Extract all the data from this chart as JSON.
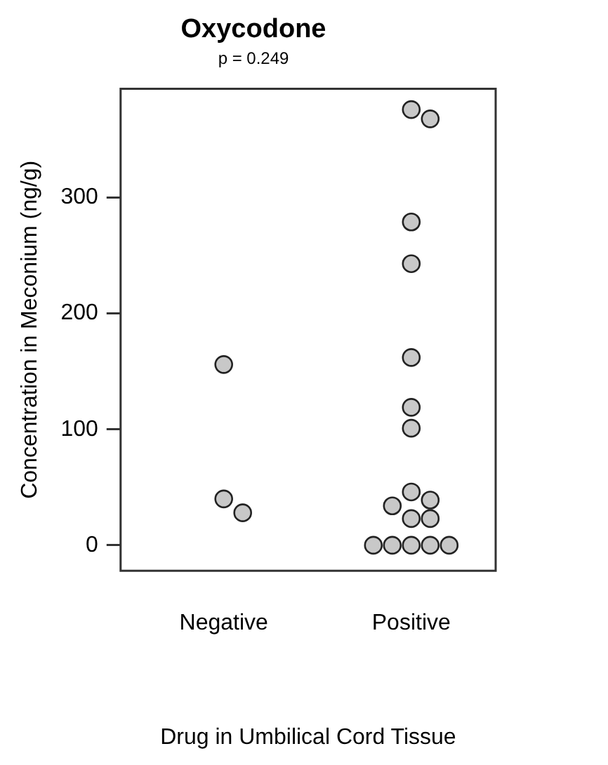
{
  "chart_data": {
    "type": "scatter",
    "title": "Oxycodone",
    "subtitle": "p = 0.249",
    "xlabel": "Drug in Umbilical Cord Tissue",
    "ylabel": "Concentration in Meconium (ng/g)",
    "categories": [
      "Negative",
      "Positive"
    ],
    "series": [
      {
        "color": "#c8c8c8",
        "x": [
          "Negative",
          "Negative",
          "Negative",
          "Positive",
          "Positive",
          "Positive",
          "Positive",
          "Positive",
          "Positive",
          "Positive",
          "Positive",
          "Positive",
          "Positive",
          "Positive",
          "Positive",
          "Positive",
          "Positive",
          "Positive",
          "Positive",
          "Positive"
        ],
        "values": [
          156,
          40,
          28,
          376,
          368,
          279,
          243,
          162,
          119,
          101,
          46,
          39,
          34,
          23,
          23,
          0,
          0,
          0,
          0,
          0
        ]
      }
    ],
    "ylim": [
      -22,
      394
    ],
    "yticks": [
      0,
      100,
      200,
      300
    ],
    "grid": false,
    "marker": "circle",
    "legend": false
  }
}
